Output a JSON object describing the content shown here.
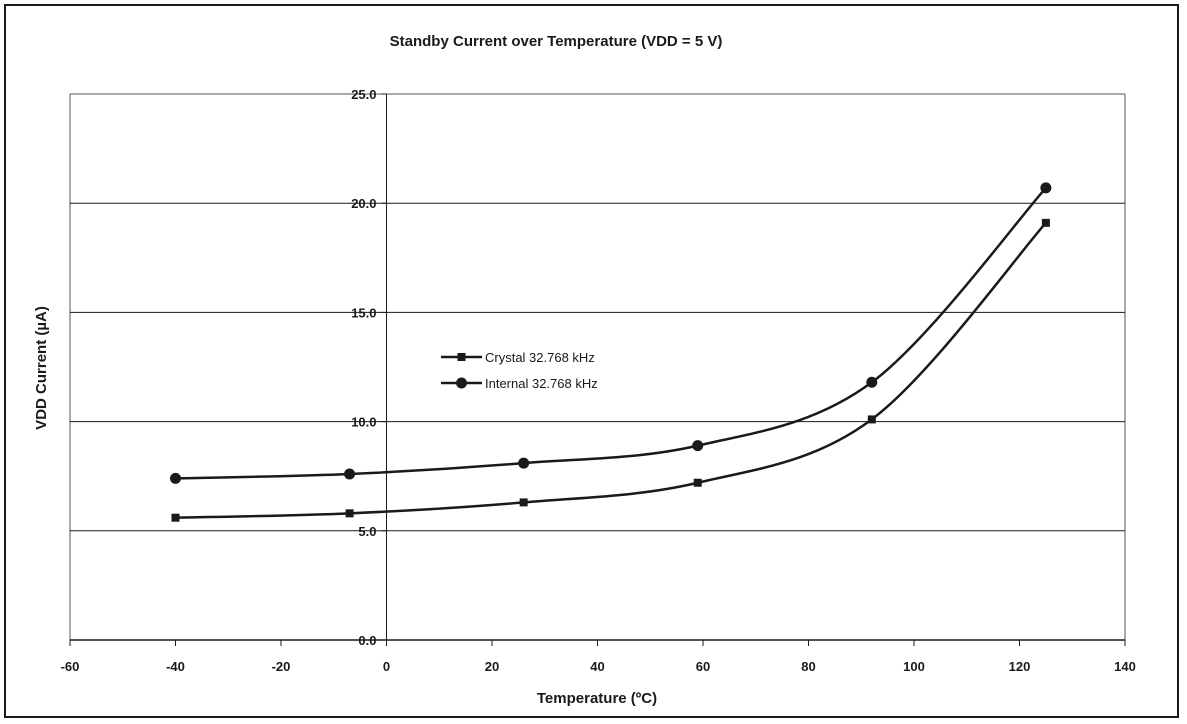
{
  "chart_data": {
    "type": "line",
    "title": "Standby Current over Temperature (VDD = 5 V)",
    "xlabel": "Temperature (ºC)",
    "ylabel": "VDD Current (µA)",
    "xlim": [
      -60,
      140
    ],
    "ylim": [
      0,
      25
    ],
    "x_ticks": [
      -60,
      -40,
      -20,
      0,
      20,
      40,
      60,
      80,
      100,
      120,
      140
    ],
    "y_ticks": [
      0.0,
      5.0,
      10.0,
      15.0,
      20.0,
      25.0
    ],
    "x_tick_labels": [
      "-60",
      "-40",
      "-20",
      "0",
      "20",
      "40",
      "60",
      "80",
      "100",
      "120",
      "140"
    ],
    "y_tick_labels": [
      "0.0",
      "5.0",
      "10.0",
      "15.0",
      "20.0",
      "25.0"
    ],
    "grid": "horizontal",
    "legend_position": "center-left",
    "line_color": "#1a1a1a",
    "series": [
      {
        "name": "Crystal 32.768 kHz",
        "marker": "square",
        "x": [
          -40,
          -7,
          26,
          59,
          92,
          125
        ],
        "y": [
          5.6,
          5.8,
          6.3,
          7.2,
          10.1,
          19.1
        ]
      },
      {
        "name": "Internal 32.768 kHz",
        "marker": "circle",
        "x": [
          -40,
          -7,
          26,
          59,
          92,
          125
        ],
        "y": [
          7.4,
          7.6,
          8.1,
          8.9,
          11.8,
          20.7
        ]
      }
    ]
  }
}
